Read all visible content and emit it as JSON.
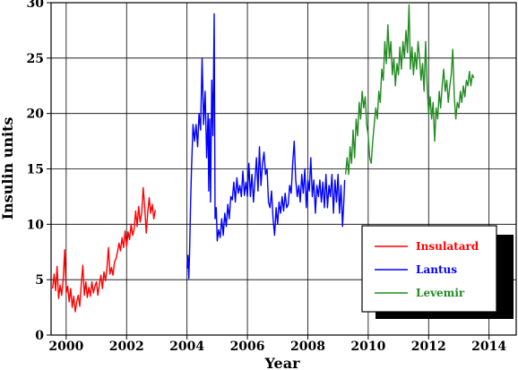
{
  "chart_data": {
    "type": "line",
    "xlabel": "Year",
    "ylabel": "Insulin units",
    "xlim": [
      1999.5,
      2014.9
    ],
    "ylim": [
      0,
      30
    ],
    "xticks": [
      2000,
      2002,
      2004,
      2006,
      2008,
      2010,
      2012,
      2014
    ],
    "yticks": [
      0,
      5,
      10,
      15,
      20,
      25,
      30
    ],
    "grid": true,
    "legend_position": "bottom-right",
    "series": [
      {
        "name": "Insulatard",
        "color": "#ff0000",
        "points": [
          [
            1999.55,
            4.2
          ],
          [
            1999.6,
            5.5
          ],
          [
            1999.65,
            4.0
          ],
          [
            1999.7,
            6.2
          ],
          [
            1999.75,
            3.3
          ],
          [
            1999.8,
            4.5
          ],
          [
            1999.85,
            3.6
          ],
          [
            1999.9,
            5.0
          ],
          [
            1999.95,
            7.7
          ],
          [
            2000.0,
            3.8
          ],
          [
            2000.05,
            4.4
          ],
          [
            2000.1,
            3.0
          ],
          [
            2000.15,
            4.2
          ],
          [
            2000.2,
            2.5
          ],
          [
            2000.25,
            3.5
          ],
          [
            2000.3,
            2.1
          ],
          [
            2000.35,
            3.0
          ],
          [
            2000.4,
            3.6
          ],
          [
            2000.45,
            2.6
          ],
          [
            2000.5,
            4.6
          ],
          [
            2000.55,
            6.3
          ],
          [
            2000.6,
            3.6
          ],
          [
            2000.65,
            4.8
          ],
          [
            2000.7,
            3.4
          ],
          [
            2000.75,
            4.3
          ],
          [
            2000.8,
            3.5
          ],
          [
            2000.85,
            4.8
          ],
          [
            2000.9,
            3.8
          ],
          [
            2000.95,
            4.4
          ],
          [
            2001.0,
            4.8
          ],
          [
            2001.05,
            3.6
          ],
          [
            2001.1,
            4.6
          ],
          [
            2001.15,
            5.4
          ],
          [
            2001.2,
            4.2
          ],
          [
            2001.25,
            5.7
          ],
          [
            2001.3,
            4.9
          ],
          [
            2001.35,
            6.0
          ],
          [
            2001.4,
            7.9
          ],
          [
            2001.45,
            5.5
          ],
          [
            2001.5,
            6.1
          ],
          [
            2001.55,
            5.4
          ],
          [
            2001.6,
            6.6
          ],
          [
            2001.65,
            6.9
          ],
          [
            2001.7,
            7.5
          ],
          [
            2001.75,
            8.3
          ],
          [
            2001.8,
            7.6
          ],
          [
            2001.85,
            8.8
          ],
          [
            2001.9,
            7.9
          ],
          [
            2001.95,
            9.4
          ],
          [
            2002.0,
            8.0
          ],
          [
            2002.05,
            9.3
          ],
          [
            2002.1,
            8.6
          ],
          [
            2002.15,
            10.0
          ],
          [
            2002.2,
            9.0
          ],
          [
            2002.25,
            9.6
          ],
          [
            2002.3,
            11.2
          ],
          [
            2002.35,
            9.8
          ],
          [
            2002.4,
            11.6
          ],
          [
            2002.45,
            10.2
          ],
          [
            2002.5,
            11.0
          ],
          [
            2002.55,
            13.3
          ],
          [
            2002.6,
            11.5
          ],
          [
            2002.65,
            9.2
          ],
          [
            2002.7,
            11.0
          ],
          [
            2002.75,
            12.4
          ],
          [
            2002.8,
            11.0
          ],
          [
            2002.85,
            11.8
          ],
          [
            2002.9,
            10.5
          ],
          [
            2002.95,
            11.3
          ]
        ]
      },
      {
        "name": "Lantus",
        "color": "#0000ff",
        "points": [
          [
            2004.0,
            6.0
          ],
          [
            2004.03,
            7.2
          ],
          [
            2004.06,
            5.1
          ],
          [
            2004.09,
            8.0
          ],
          [
            2004.12,
            12.0
          ],
          [
            2004.15,
            15.0
          ],
          [
            2004.2,
            19.0
          ],
          [
            2004.25,
            17.5
          ],
          [
            2004.3,
            19.0
          ],
          [
            2004.35,
            17.0
          ],
          [
            2004.4,
            20.0
          ],
          [
            2004.45,
            18.5
          ],
          [
            2004.5,
            25.0
          ],
          [
            2004.55,
            19.0
          ],
          [
            2004.6,
            22.0
          ],
          [
            2004.65,
            16.0
          ],
          [
            2004.7,
            20.0
          ],
          [
            2004.72,
            13.0
          ],
          [
            2004.75,
            19.5
          ],
          [
            2004.78,
            12.0
          ],
          [
            2004.82,
            23.0
          ],
          [
            2004.86,
            18.0
          ],
          [
            2004.9,
            29.0
          ],
          [
            2004.93,
            10.5
          ],
          [
            2004.97,
            11.5
          ],
          [
            2005.0,
            8.5
          ],
          [
            2005.05,
            9.5
          ],
          [
            2005.1,
            8.8
          ],
          [
            2005.15,
            10.5
          ],
          [
            2005.2,
            9.0
          ],
          [
            2005.25,
            11.0
          ],
          [
            2005.3,
            9.8
          ],
          [
            2005.35,
            11.8
          ],
          [
            2005.4,
            10.5
          ],
          [
            2005.45,
            12.5
          ],
          [
            2005.5,
            12.2
          ],
          [
            2005.55,
            13.8
          ],
          [
            2005.6,
            12.0
          ],
          [
            2005.65,
            14.2
          ],
          [
            2005.7,
            12.8
          ],
          [
            2005.75,
            13.5
          ],
          [
            2005.8,
            12.5
          ],
          [
            2005.85,
            14.8
          ],
          [
            2005.9,
            12.6
          ],
          [
            2005.95,
            13.8
          ],
          [
            2006.0,
            12.5
          ],
          [
            2006.05,
            15.5
          ],
          [
            2006.1,
            12.5
          ],
          [
            2006.15,
            14.5
          ],
          [
            2006.2,
            12.0
          ],
          [
            2006.25,
            14.0
          ],
          [
            2006.3,
            16.0
          ],
          [
            2006.35,
            13.0
          ],
          [
            2006.4,
            17.0
          ],
          [
            2006.45,
            13.5
          ],
          [
            2006.5,
            15.5
          ],
          [
            2006.55,
            16.5
          ],
          [
            2006.6,
            14.5
          ],
          [
            2006.65,
            15.0
          ],
          [
            2006.7,
            12.0
          ],
          [
            2006.75,
            11.5
          ],
          [
            2006.8,
            13.0
          ],
          [
            2006.85,
            10.5
          ],
          [
            2006.9,
            9.0
          ],
          [
            2006.95,
            11.5
          ],
          [
            2007.0,
            10.0
          ],
          [
            2007.05,
            12.0
          ],
          [
            2007.1,
            11.0
          ],
          [
            2007.15,
            12.5
          ],
          [
            2007.2,
            11.2
          ],
          [
            2007.25,
            12.8
          ],
          [
            2007.3,
            11.5
          ],
          [
            2007.35,
            11.8
          ],
          [
            2007.4,
            13.5
          ],
          [
            2007.45,
            12.8
          ],
          [
            2007.5,
            15.5
          ],
          [
            2007.55,
            17.5
          ],
          [
            2007.6,
            14.0
          ],
          [
            2007.65,
            12.5
          ],
          [
            2007.7,
            13.5
          ],
          [
            2007.75,
            12.0
          ],
          [
            2007.8,
            14.5
          ],
          [
            2007.85,
            12.8
          ],
          [
            2007.9,
            15.0
          ],
          [
            2007.95,
            11.5
          ],
          [
            2008.0,
            14.0
          ],
          [
            2008.05,
            13.0
          ],
          [
            2008.1,
            16.0
          ],
          [
            2008.15,
            12.5
          ],
          [
            2008.2,
            14.0
          ],
          [
            2008.25,
            11.0
          ],
          [
            2008.3,
            13.5
          ],
          [
            2008.35,
            12.5
          ],
          [
            2008.4,
            14.0
          ],
          [
            2008.45,
            12.0
          ],
          [
            2008.5,
            13.8
          ],
          [
            2008.55,
            11.5
          ],
          [
            2008.6,
            14.5
          ],
          [
            2008.65,
            11.5
          ],
          [
            2008.7,
            13.5
          ],
          [
            2008.75,
            12.5
          ],
          [
            2008.8,
            14.5
          ],
          [
            2008.85,
            11.0
          ],
          [
            2008.9,
            14.0
          ],
          [
            2008.95,
            12.0
          ],
          [
            2009.0,
            14.5
          ],
          [
            2009.05,
            11.0
          ],
          [
            2009.1,
            13.5
          ],
          [
            2009.15,
            9.8
          ],
          [
            2009.2,
            12.5
          ],
          [
            2009.22,
            14.0
          ]
        ]
      },
      {
        "name": "Levemir",
        "color": "#228b22",
        "points": [
          [
            2009.25,
            14.5
          ],
          [
            2009.3,
            16.0
          ],
          [
            2009.35,
            14.5
          ],
          [
            2009.4,
            17.0
          ],
          [
            2009.45,
            15.5
          ],
          [
            2009.5,
            18.5
          ],
          [
            2009.55,
            16.0
          ],
          [
            2009.6,
            19.5
          ],
          [
            2009.65,
            18.0
          ],
          [
            2009.7,
            21.0
          ],
          [
            2009.75,
            19.5
          ],
          [
            2009.8,
            22.0
          ],
          [
            2009.85,
            20.5
          ],
          [
            2009.9,
            21.5
          ],
          [
            2009.95,
            19.0
          ],
          [
            2010.0,
            18.0
          ],
          [
            2010.05,
            16.0
          ],
          [
            2010.1,
            15.5
          ],
          [
            2010.15,
            17.5
          ],
          [
            2010.2,
            19.0
          ],
          [
            2010.25,
            20.5
          ],
          [
            2010.3,
            19.5
          ],
          [
            2010.35,
            22.0
          ],
          [
            2010.4,
            21.0
          ],
          [
            2010.45,
            24.0
          ],
          [
            2010.5,
            23.0
          ],
          [
            2010.55,
            26.5
          ],
          [
            2010.6,
            24.5
          ],
          [
            2010.65,
            28.0
          ],
          [
            2010.7,
            25.0
          ],
          [
            2010.75,
            26.5
          ],
          [
            2010.8,
            23.5
          ],
          [
            2010.85,
            25.0
          ],
          [
            2010.9,
            22.5
          ],
          [
            2010.95,
            24.5
          ],
          [
            2011.0,
            23.5
          ],
          [
            2011.05,
            26.0
          ],
          [
            2011.1,
            24.0
          ],
          [
            2011.15,
            26.5
          ],
          [
            2011.2,
            25.0
          ],
          [
            2011.25,
            27.5
          ],
          [
            2011.3,
            25.5
          ],
          [
            2011.35,
            29.8
          ],
          [
            2011.4,
            24.0
          ],
          [
            2011.45,
            26.0
          ],
          [
            2011.5,
            23.5
          ],
          [
            2011.55,
            25.5
          ],
          [
            2011.6,
            24.0
          ],
          [
            2011.65,
            26.5
          ],
          [
            2011.7,
            25.0
          ],
          [
            2011.75,
            23.0
          ],
          [
            2011.8,
            24.5
          ],
          [
            2011.85,
            22.0
          ],
          [
            2011.9,
            26.5
          ],
          [
            2011.95,
            22.5
          ],
          [
            2012.0,
            20.0
          ],
          [
            2012.05,
            21.5
          ],
          [
            2012.1,
            19.5
          ],
          [
            2012.15,
            21.0
          ],
          [
            2012.2,
            17.5
          ],
          [
            2012.25,
            20.5
          ],
          [
            2012.3,
            19.5
          ],
          [
            2012.35,
            22.0
          ],
          [
            2012.4,
            20.5
          ],
          [
            2012.45,
            22.5
          ],
          [
            2012.5,
            24.0
          ],
          [
            2012.55,
            22.0
          ],
          [
            2012.6,
            23.0
          ],
          [
            2012.65,
            21.0
          ],
          [
            2012.7,
            22.5
          ],
          [
            2012.75,
            23.5
          ],
          [
            2012.8,
            25.8
          ],
          [
            2012.85,
            21.5
          ],
          [
            2012.9,
            19.5
          ],
          [
            2012.95,
            21.0
          ],
          [
            2013.0,
            20.5
          ],
          [
            2013.05,
            22.0
          ],
          [
            2013.1,
            21.0
          ],
          [
            2013.15,
            22.5
          ],
          [
            2013.2,
            21.5
          ],
          [
            2013.25,
            23.0
          ],
          [
            2013.3,
            22.5
          ],
          [
            2013.35,
            23.8
          ],
          [
            2013.4,
            22.5
          ],
          [
            2013.45,
            23.5
          ],
          [
            2013.5,
            23.2
          ]
        ]
      }
    ]
  }
}
